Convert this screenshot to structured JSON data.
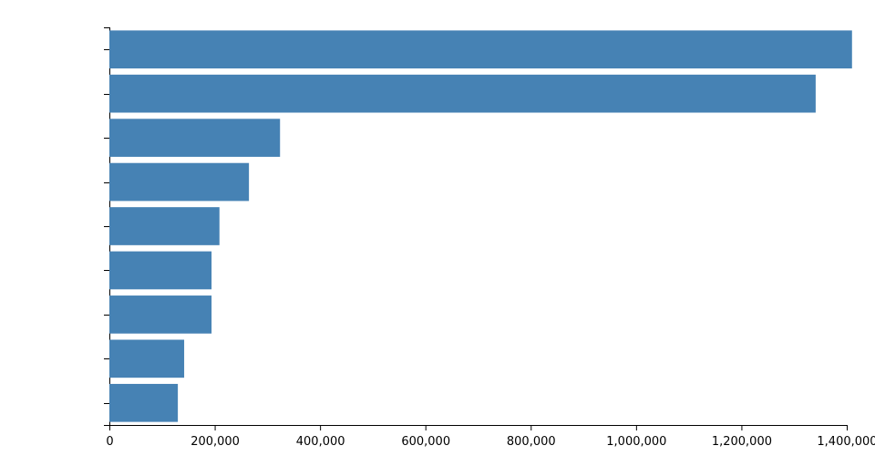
{
  "chart_data": {
    "type": "bar",
    "orientation": "horizontal",
    "categories": [
      null,
      null,
      null,
      null,
      null,
      null,
      null,
      null,
      null
    ],
    "values": [
      1410000,
      1341000,
      324000,
      265000,
      209000,
      194000,
      194000,
      142000,
      130000
    ],
    "color": "#4682b4",
    "xlim": [
      0,
      1400000
    ],
    "xticks": [
      0,
      {
        "value": 200000,
        "label": "200,000"
      },
      {
        "value": 400000,
        "label": "400,000"
      },
      {
        "value": 600000,
        "label": "600,000"
      },
      {
        "value": 800000,
        "label": "800,000"
      },
      {
        "value": 1000000,
        "label": "1,000,000"
      },
      {
        "value": 1200000,
        "label": "1,200,000"
      },
      {
        "value": 1400000,
        "label": "1,400,000"
      }
    ],
    "grid": false
  }
}
